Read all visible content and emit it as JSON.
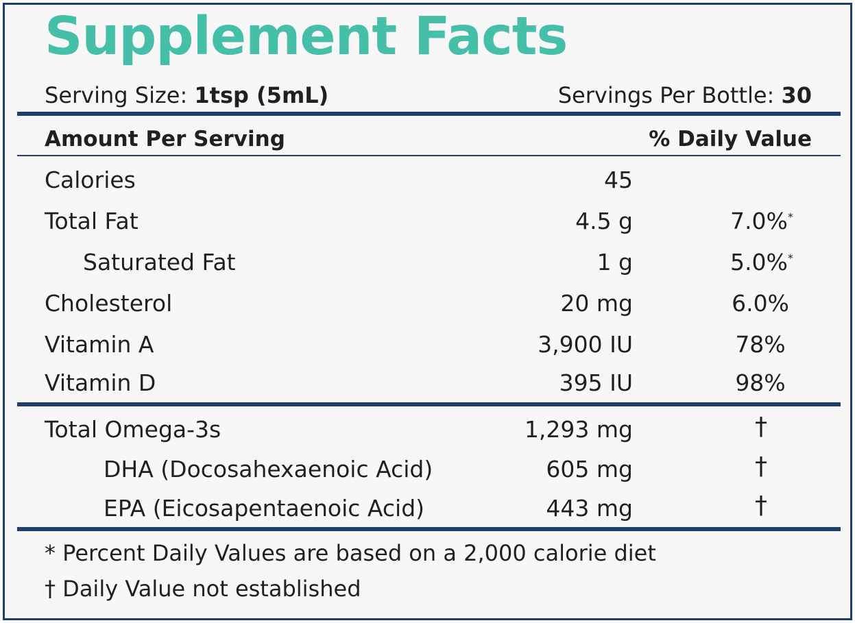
{
  "label": {
    "title": "Supplement Facts",
    "serving_size_label": "Serving Size:",
    "serving_size_value": "1tsp (5mL)",
    "servings_per_label": "Servings Per Bottle:",
    "servings_per_value": "30",
    "amount_header": "Amount Per Serving",
    "dv_header": "% Daily Value"
  },
  "nutrients": [
    {
      "name": "Calories",
      "amount": "45",
      "dv": "",
      "dv_mark": ""
    },
    {
      "name": "Total Fat",
      "amount": "4.5 g",
      "dv": "7.0%",
      "dv_mark": "*"
    },
    {
      "name": "Saturated Fat",
      "amount": "1 g",
      "dv": "5.0%",
      "dv_mark": "*"
    },
    {
      "name": "Cholesterol",
      "amount": "20 mg",
      "dv": "6.0%",
      "dv_mark": ""
    },
    {
      "name": "Vitamin A",
      "amount": "3,900 IU",
      "dv": "78%",
      "dv_mark": ""
    },
    {
      "name": "Vitamin D",
      "amount": "395 IU",
      "dv": "98%",
      "dv_mark": ""
    }
  ],
  "omega": [
    {
      "name": "Total Omega-3s",
      "amount": "1,293 mg",
      "dv": "†"
    },
    {
      "name": "DHA (Docosahexaenoic Acid)",
      "amount": "605 mg",
      "dv": "†"
    },
    {
      "name": "EPA (Eicosapentaenoic Acid)",
      "amount": "443 mg",
      "dv": "†"
    }
  ],
  "footnotes": {
    "percent_note": "* Percent Daily Values are based on a 2,000 calorie diet",
    "dagger_note": "† Daily Value not established"
  },
  "colors": {
    "title": "#45bfa8",
    "rules": "#1e3f6b",
    "text": "#231f20",
    "background": "#f7f7f7"
  }
}
